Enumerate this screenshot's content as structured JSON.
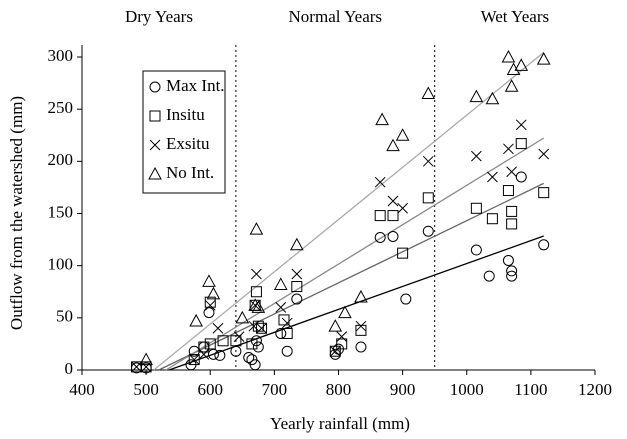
{
  "chart_data": {
    "type": "scatter",
    "annotations": [
      "Dry Years",
      "Normal Years",
      "Wet Years"
    ],
    "dividers": [
      640,
      950
    ],
    "xlabel": "Yearly rainfall (mm)",
    "ylabel": "Outflow from the watershed (mm)",
    "xlim": [
      400,
      1200
    ],
    "xticks": [
      400,
      500,
      600,
      700,
      800,
      900,
      1000,
      1100,
      1200
    ],
    "ylim": [
      0,
      300
    ],
    "yticks": [
      0,
      50,
      100,
      150,
      200,
      250,
      300
    ],
    "legend": "upper left",
    "trendlines": true,
    "series": [
      {
        "name": "Max Int.",
        "marker": "circle",
        "color": "#000000",
        "trend_color": "#000000",
        "x": [
          485,
          500,
          570,
          575,
          590,
          598,
          605,
          615,
          640,
          660,
          665,
          670,
          672,
          675,
          710,
          720,
          735,
          795,
          800,
          835,
          865,
          885,
          905,
          940,
          1015,
          1035,
          1065,
          1070,
          1070,
          1085,
          1120
        ],
        "values": [
          2,
          2,
          5,
          18,
          22,
          55,
          15,
          14,
          18,
          12,
          10,
          5,
          28,
          22,
          35,
          18,
          68,
          15,
          20,
          22,
          127,
          128,
          68,
          133,
          115,
          90,
          105,
          95,
          90,
          185,
          120
        ]
      },
      {
        "name": "Insitu",
        "marker": "square",
        "color": "#000000",
        "trend_color": "#666666",
        "x": [
          485,
          500,
          575,
          590,
          600,
          600,
          620,
          640,
          665,
          670,
          672,
          675,
          680,
          715,
          720,
          735,
          795,
          805,
          835,
          865,
          885,
          900,
          940,
          1015,
          1040,
          1065,
          1070,
          1070,
          1085,
          1120
        ],
        "values": [
          3,
          3,
          10,
          22,
          25,
          65,
          28,
          28,
          25,
          62,
          75,
          42,
          40,
          48,
          35,
          80,
          18,
          25,
          38,
          148,
          148,
          112,
          165,
          155,
          145,
          172,
          152,
          140,
          217,
          170
        ]
      },
      {
        "name": "Exsitu",
        "marker": "cross",
        "color": "#000000",
        "trend_color": "#888888",
        "x": [
          485,
          500,
          575,
          590,
          600,
          612,
          645,
          668,
          670,
          672,
          680,
          710,
          720,
          735,
          795,
          805,
          835,
          865,
          885,
          900,
          940,
          1015,
          1040,
          1065,
          1070,
          1085,
          1120
        ],
        "values": [
          3,
          3,
          10,
          15,
          62,
          40,
          32,
          42,
          62,
          92,
          40,
          60,
          45,
          92,
          18,
          32,
          42,
          180,
          162,
          155,
          200,
          205,
          185,
          212,
          190,
          235,
          207
        ]
      },
      {
        "name": "No Int.",
        "marker": "triangle",
        "color": "#000000",
        "trend_color": "#aaaaaa",
        "x": [
          500,
          578,
          598,
          605,
          650,
          670,
          672,
          675,
          710,
          735,
          795,
          810,
          835,
          868,
          885,
          900,
          940,
          1015,
          1040,
          1065,
          1070,
          1073,
          1085,
          1120
        ],
        "values": [
          10,
          47,
          85,
          73,
          50,
          62,
          135,
          60,
          82,
          120,
          42,
          55,
          70,
          240,
          215,
          225,
          265,
          262,
          260,
          300,
          272,
          288,
          292,
          298
        ]
      }
    ]
  }
}
